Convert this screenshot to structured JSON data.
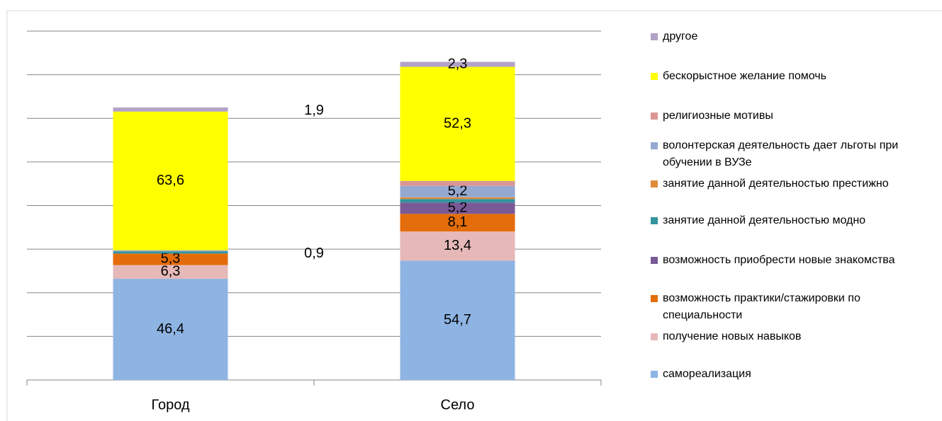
{
  "chart_data": {
    "type": "stacked_bar",
    "categories": [
      "Город",
      "Село"
    ],
    "ylim": [
      0,
      160
    ],
    "yticks": [
      0,
      20,
      40,
      60,
      80,
      100,
      120,
      140,
      160
    ],
    "grid": true,
    "series": [
      {
        "name": "самореализация",
        "color": "#8eb4e3",
        "values": [
          46.4,
          54.7
        ],
        "value_labels": [
          "46,4",
          "54,7"
        ]
      },
      {
        "name": "получение новых навыков",
        "color": "#e6b9b8",
        "values": [
          6.3,
          13.4
        ],
        "value_labels": [
          "6,3",
          "13,4"
        ]
      },
      {
        "name": "возможность практики/стажировки по специальности",
        "color": "#e46c0a",
        "values": [
          5.3,
          8.1
        ],
        "value_labels": [
          "5,3",
          "8,1"
        ]
      },
      {
        "name": "возможность приобрести новые знакомства",
        "color": "#7a5a96",
        "values": [
          0,
          5.2
        ],
        "value_labels": [
          null,
          "5,2"
        ]
      },
      {
        "name": "занятие данной деятельностью модно",
        "color": "#31949e",
        "values": [
          0.9,
          1.6
        ],
        "value_labels": [
          "0,9",
          null
        ]
      },
      {
        "name": "занятие данной деятельностью престижно",
        "color": "#e08a3c",
        "values": [
          0,
          0.8
        ],
        "value_labels": [
          null,
          null
        ]
      },
      {
        "name": "волонтерская деятельность дает льготы при обучении в ВУЗе",
        "color": "#95a9d0",
        "values": [
          0.6,
          5.2
        ],
        "value_labels": [
          null,
          "5,2"
        ]
      },
      {
        "name": "религиозные мотивы",
        "color": "#d99694",
        "values": [
          0,
          2.3
        ],
        "value_labels": [
          null,
          null
        ]
      },
      {
        "name": "бескорыстное желание помочь",
        "color": "#ffff00",
        "values": [
          63.6,
          52.3
        ],
        "value_labels": [
          "63,6",
          "52,3"
        ]
      },
      {
        "name": "другое",
        "color": "#b3a2c7",
        "values": [
          1.9,
          2.3
        ],
        "value_labels": [
          "1,9",
          "2,3"
        ]
      }
    ]
  }
}
